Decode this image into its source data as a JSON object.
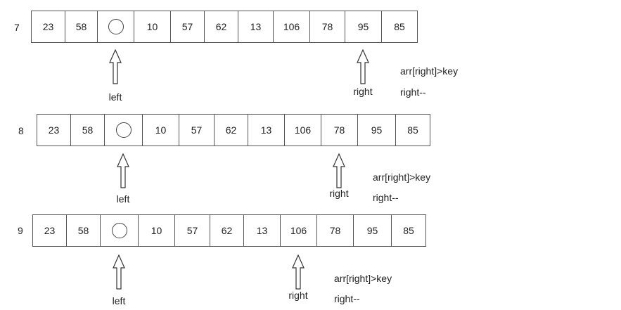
{
  "steps": [
    {
      "number": "7",
      "cells": [
        "23",
        "58",
        "",
        "10",
        "57",
        "62",
        "13",
        "106",
        "78",
        "95",
        "85"
      ],
      "hole_index": 2,
      "left_index": 2,
      "right_index": 9,
      "left_label": "left",
      "right_label": "right",
      "note_line1": "arr[right]>key",
      "note_line2": "right--"
    },
    {
      "number": "8",
      "cells": [
        "23",
        "58",
        "",
        "10",
        "57",
        "62",
        "13",
        "106",
        "78",
        "95",
        "85"
      ],
      "hole_index": 2,
      "left_index": 2,
      "right_index": 8,
      "left_label": "left",
      "right_label": "right",
      "note_line1": "arr[right]>key",
      "note_line2": "right--"
    },
    {
      "number": "9",
      "cells": [
        "23",
        "58",
        "",
        "10",
        "57",
        "62",
        "13",
        "106",
        "78",
        "95",
        "85"
      ],
      "hole_index": 2,
      "left_index": 2,
      "right_index": 7,
      "left_label": "left",
      "right_label": "right",
      "note_line1": "arr[right]>key",
      "note_line2": "right--"
    }
  ]
}
